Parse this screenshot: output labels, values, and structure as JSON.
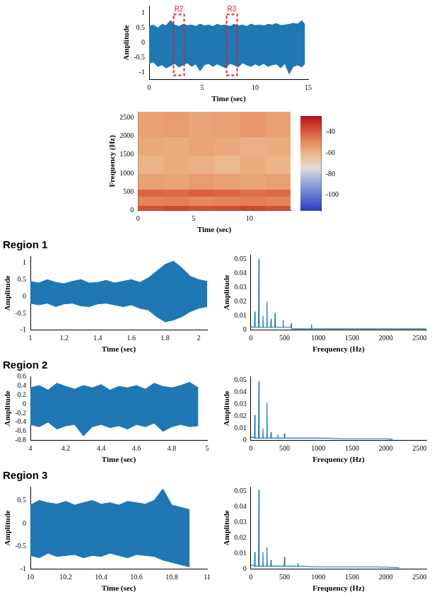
{
  "chart_data": [
    {
      "type": "line",
      "xlabel": "Time (sec)",
      "ylabel": "Amplitude",
      "color": "#1f77b4",
      "grid": false,
      "xlim": [
        0,
        15
      ],
      "xticks": [
        0,
        5,
        10,
        15
      ],
      "ylim": [
        -1.25,
        1.25
      ],
      "yticks": [
        -1,
        -0.5,
        0,
        0.5,
        1
      ],
      "envelope": {
        "x": [
          0,
          0.4,
          0.8,
          1.2,
          1.6,
          2.0,
          2.4,
          2.8,
          3.2,
          3.6,
          4.0,
          4.4,
          4.8,
          5.2,
          5.6,
          6.0,
          6.4,
          6.8,
          7.2,
          7.6,
          8.0,
          8.4,
          8.8,
          9.2,
          9.6,
          10.0,
          10.4,
          10.8,
          11.2,
          11.6,
          12.0,
          12.4,
          12.8,
          13.2,
          13.6,
          14.0,
          14.4,
          14.7
        ],
        "max": [
          0.55,
          0.6,
          0.5,
          0.62,
          0.58,
          0.75,
          0.6,
          0.55,
          0.62,
          0.58,
          0.6,
          0.55,
          0.63,
          0.57,
          0.6,
          0.55,
          0.62,
          0.58,
          0.6,
          0.55,
          0.62,
          0.57,
          0.6,
          0.55,
          0.63,
          0.58,
          0.6,
          0.57,
          0.62,
          0.6,
          0.65,
          0.58,
          0.6,
          0.62,
          0.66,
          0.63,
          0.75,
          0.6
        ],
        "min": [
          -0.7,
          -0.65,
          -0.8,
          -0.75,
          -0.85,
          -0.78,
          -0.7,
          -0.82,
          -0.75,
          -0.68,
          -0.8,
          -0.72,
          -0.95,
          -0.75,
          -0.7,
          -0.8,
          -0.72,
          -0.78,
          -0.85,
          -0.7,
          -0.75,
          -0.82,
          -0.68,
          -0.75,
          -0.8,
          -0.72,
          -0.78,
          -0.7,
          -0.8,
          -0.75,
          -0.72,
          -0.85,
          -0.7,
          -1.05,
          -0.8,
          -0.75,
          -0.82,
          -0.7
        ]
      },
      "annotations": [
        {
          "text": "R2",
          "x": [
            2.3,
            3.3
          ],
          "y": [
            -1.1,
            0.95
          ]
        },
        {
          "text": "R3",
          "x": [
            7.3,
            8.3
          ],
          "y": [
            -1.1,
            0.95
          ]
        }
      ]
    },
    {
      "type": "heatmap",
      "xlabel": "Time (sec)",
      "ylabel": "Frequency (Hz)",
      "grid": false,
      "xlim": [
        0,
        13.7
      ],
      "xticks": [
        0,
        5,
        10
      ],
      "ylim": [
        0,
        2650
      ],
      "yticks": [
        0,
        500,
        1000,
        1500,
        2000,
        2500
      ],
      "x_edges": [
        0,
        2.3,
        4.6,
        6.9,
        9.2,
        11.5,
        13.7
      ],
      "y_edges": [
        0,
        150,
        400,
        600,
        1000,
        1500,
        2000,
        2650
      ],
      "cells": [
        [
          -38,
          -36,
          -38,
          -37,
          -36,
          -38
        ],
        [
          -48,
          -47,
          -49,
          -48,
          -47,
          -48
        ],
        [
          -42,
          -43,
          -41,
          -42,
          -44,
          -43
        ],
        [
          -55,
          -56,
          -54,
          -55,
          -56,
          -55
        ],
        [
          -60,
          -58,
          -59,
          -61,
          -58,
          -60
        ],
        [
          -57,
          -58,
          -56,
          -57,
          -59,
          -58
        ],
        [
          -55,
          -54,
          -56,
          -55,
          -53,
          -55
        ]
      ],
      "colorbar": {
        "range": [
          -115,
          -25
        ],
        "ticks": [
          -40,
          -60,
          -80,
          -100
        ]
      }
    },
    {
      "type": "line",
      "title": "Region 1",
      "xlabel": "Time (sec)",
      "ylabel": "Amplitude",
      "color": "#1f77b4",
      "grid": false,
      "xlim": [
        1,
        2.05
      ],
      "xticks": [
        1,
        1.2,
        1.4,
        1.6,
        1.8,
        2
      ],
      "ylim": [
        -1,
        1.2
      ],
      "yticks": [
        -1,
        -0.5,
        0,
        0.5,
        1
      ],
      "envelope": {
        "x": [
          1.0,
          1.05,
          1.1,
          1.15,
          1.2,
          1.25,
          1.3,
          1.35,
          1.4,
          1.45,
          1.5,
          1.55,
          1.6,
          1.65,
          1.7,
          1.75,
          1.8,
          1.85,
          1.9,
          1.95,
          2.0,
          2.05
        ],
        "max": [
          0.45,
          0.4,
          0.5,
          0.42,
          0.38,
          0.45,
          0.5,
          0.4,
          0.42,
          0.48,
          0.4,
          0.45,
          0.5,
          0.42,
          0.55,
          0.75,
          0.95,
          1.05,
          0.85,
          0.6,
          0.5,
          0.45
        ],
        "min": [
          -0.2,
          -0.25,
          -0.2,
          -0.3,
          -0.22,
          -0.2,
          -0.28,
          -0.3,
          -0.22,
          -0.2,
          -0.25,
          -0.3,
          -0.25,
          -0.35,
          -0.4,
          -0.6,
          -0.75,
          -0.7,
          -0.6,
          -0.45,
          -0.35,
          -0.3
        ]
      }
    },
    {
      "type": "line",
      "xlabel": "Frequency (Hz)",
      "ylabel": "Amplitude",
      "color": "#1f77b4",
      "grid": false,
      "xlim": [
        0,
        2600
      ],
      "xticks": [
        0,
        500,
        1000,
        1500,
        2000,
        2500
      ],
      "ylim": [
        0,
        0.053
      ],
      "yticks": [
        0,
        0.01,
        0.02,
        0.03,
        0.04,
        0.05
      ],
      "x": [
        0,
        20,
        55,
        60,
        65,
        115,
        120,
        125,
        175,
        180,
        185,
        235,
        240,
        245,
        295,
        300,
        305,
        355,
        360,
        365,
        475,
        480,
        485,
        595,
        600,
        605,
        895,
        900,
        905,
        1200,
        1500,
        1800,
        2100,
        2400,
        2600
      ],
      "values": [
        0.003,
        0.002,
        0.002,
        0.013,
        0.002,
        0.002,
        0.05,
        0.002,
        0.002,
        0.01,
        0.002,
        0.002,
        0.02,
        0.002,
        0.002,
        0.008,
        0.002,
        0.002,
        0.012,
        0.002,
        0.002,
        0.007,
        0.002,
        0.002,
        0.005,
        0.001,
        0.001,
        0.004,
        0.001,
        0.001,
        0.001,
        0.001,
        0.001,
        0.001,
        0.001
      ]
    },
    {
      "type": "line",
      "title": "Region 2",
      "xlabel": "Time (sec)",
      "ylabel": "Amplitude",
      "color": "#1f77b4",
      "grid": false,
      "xlim": [
        4,
        5
      ],
      "xticks": [
        4,
        4.2,
        4.4,
        4.6,
        4.8,
        5
      ],
      "ylim": [
        -0.8,
        0.6
      ],
      "yticks": [
        -0.8,
        -0.6,
        -0.4,
        -0.2,
        0,
        0.2,
        0.4,
        0.6
      ],
      "envelope": {
        "x": [
          4.0,
          4.05,
          4.1,
          4.15,
          4.2,
          4.25,
          4.3,
          4.35,
          4.4,
          4.45,
          4.5,
          4.55,
          4.6,
          4.65,
          4.7,
          4.75,
          4.8,
          4.85,
          4.9,
          4.95
        ],
        "max": [
          0.35,
          0.4,
          0.3,
          0.45,
          0.38,
          0.32,
          0.4,
          0.35,
          0.42,
          0.3,
          0.38,
          0.35,
          0.4,
          0.32,
          0.45,
          0.38,
          0.35,
          0.4,
          0.47,
          0.35
        ],
        "min": [
          -0.45,
          -0.5,
          -0.4,
          -0.55,
          -0.48,
          -0.45,
          -0.7,
          -0.5,
          -0.45,
          -0.52,
          -0.48,
          -0.55,
          -0.45,
          -0.5,
          -0.42,
          -0.6,
          -0.5,
          -0.45,
          -0.5,
          -0.48
        ]
      }
    },
    {
      "type": "line",
      "xlabel": "Frequency (Hz)",
      "ylabel": "Amplitude",
      "color": "#1f77b4",
      "grid": false,
      "xlim": [
        0,
        2600
      ],
      "xticks": [
        0,
        500,
        1000,
        1500,
        2000,
        2500
      ],
      "ylim": [
        0,
        0.053
      ],
      "yticks": [
        0,
        0.01,
        0.02,
        0.03,
        0.04,
        0.05
      ],
      "x": [
        0,
        55,
        60,
        65,
        115,
        120,
        125,
        175,
        180,
        185,
        235,
        240,
        245,
        295,
        300,
        305,
        395,
        400,
        405,
        495,
        500,
        505,
        800,
        1100,
        1400,
        1700,
        2000,
        2100
      ],
      "values": [
        0.003,
        0.002,
        0.021,
        0.002,
        0.002,
        0.049,
        0.002,
        0.002,
        0.01,
        0.002,
        0.002,
        0.031,
        0.002,
        0.002,
        0.007,
        0.002,
        0.002,
        0.005,
        0.002,
        0.002,
        0.006,
        0.002,
        0.002,
        0.002,
        0.0015,
        0.0015,
        0.0015,
        0.001
      ]
    },
    {
      "type": "line",
      "title": "Region 3",
      "xlabel": "Time (sec)",
      "ylabel": "Amplitude",
      "color": "#1f77b4",
      "grid": false,
      "xlim": [
        10,
        11
      ],
      "xticks": [
        10,
        10.2,
        10.4,
        10.6,
        10.8,
        11
      ],
      "ylim": [
        -1,
        0.8
      ],
      "yticks": [
        -1,
        -0.5,
        0,
        0.5
      ],
      "envelope": {
        "x": [
          10.0,
          10.05,
          10.1,
          10.15,
          10.2,
          10.25,
          10.3,
          10.35,
          10.4,
          10.45,
          10.5,
          10.55,
          10.6,
          10.65,
          10.7,
          10.75,
          10.8,
          10.85,
          10.9
        ],
        "max": [
          0.4,
          0.5,
          0.45,
          0.42,
          0.48,
          0.4,
          0.45,
          0.5,
          0.42,
          0.45,
          0.4,
          0.48,
          0.45,
          0.42,
          0.5,
          0.75,
          0.4,
          0.35,
          0.3
        ],
        "min": [
          -0.7,
          -0.75,
          -0.65,
          -0.72,
          -0.7,
          -0.68,
          -0.75,
          -0.7,
          -0.72,
          -0.65,
          -0.7,
          -0.75,
          -0.68,
          -0.7,
          -0.72,
          -0.8,
          -0.85,
          -0.9,
          -0.95
        ]
      }
    },
    {
      "type": "line",
      "xlabel": "Frequency (Hz)",
      "ylabel": "Amplitude",
      "color": "#1f77b4",
      "grid": false,
      "xlim": [
        0,
        2600
      ],
      "xticks": [
        0,
        500,
        1000,
        1500,
        2000,
        2500
      ],
      "ylim": [
        0,
        0.053
      ],
      "yticks": [
        0,
        0.01,
        0.02,
        0.03,
        0.04,
        0.05
      ],
      "x": [
        0,
        55,
        60,
        65,
        115,
        120,
        125,
        175,
        180,
        185,
        235,
        240,
        245,
        295,
        300,
        305,
        495,
        500,
        505,
        695,
        700,
        705,
        1000,
        1300,
        1600,
        1900,
        2200
      ],
      "values": [
        0.003,
        0.002,
        0.011,
        0.002,
        0.002,
        0.051,
        0.002,
        0.002,
        0.011,
        0.002,
        0.002,
        0.014,
        0.002,
        0.002,
        0.006,
        0.002,
        0.002,
        0.008,
        0.002,
        0.002,
        0.004,
        0.002,
        0.0015,
        0.0015,
        0.0015,
        0.0015,
        0.001
      ]
    }
  ]
}
